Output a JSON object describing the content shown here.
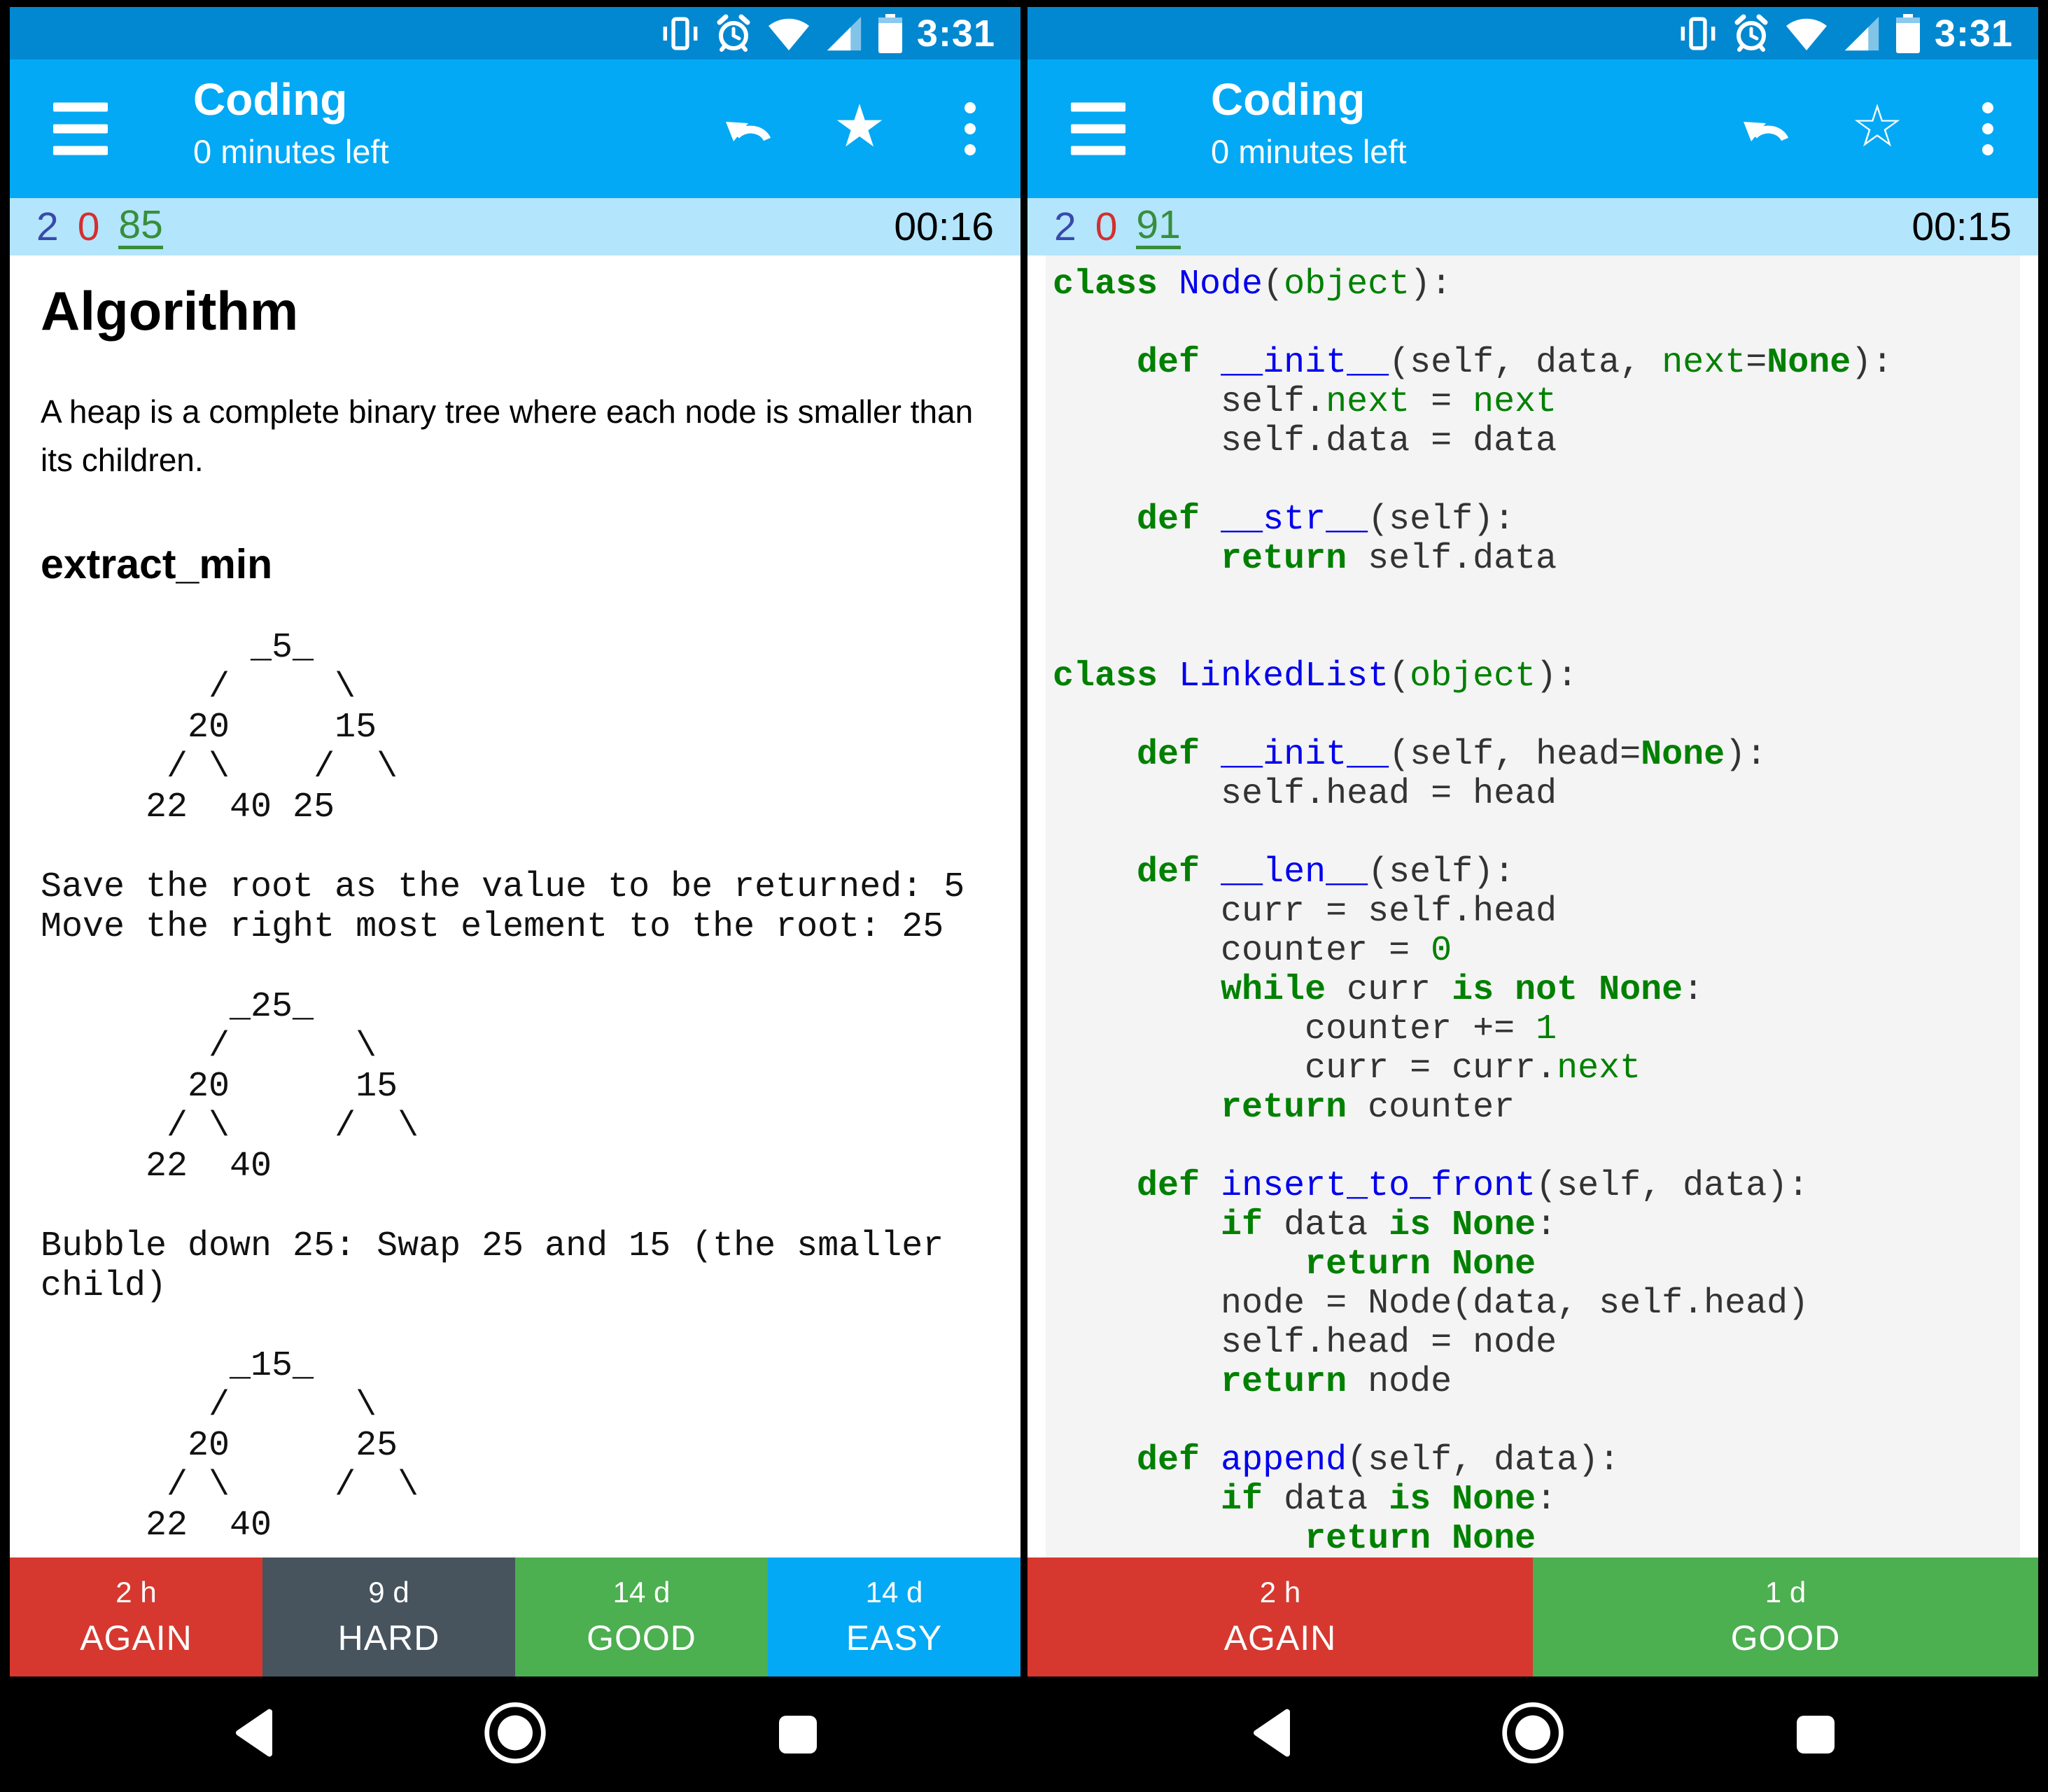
{
  "status_bar": {
    "time": "3:31",
    "icons": [
      "vibrate-icon",
      "alarm-icon",
      "wifi-icon",
      "cell-signal-icon",
      "battery-icon"
    ]
  },
  "nav_bar": {
    "icons": [
      "back-icon",
      "home-icon",
      "recents-icon"
    ]
  },
  "colors": {
    "status_bar_bg": "#0288d1",
    "toolbar_bg": "#03a9f4",
    "counter_bar_bg": "#b3e5fc",
    "new_count": "#3949ab",
    "learning_count": "#d32f2f",
    "due_count": "#388e3c",
    "code_bg": "#f4f4f4",
    "code_keyword": "#008000",
    "code_builtin": "#008000",
    "code_name": "#0000ee",
    "again_red": "#d6382f",
    "hard_gray": "#47545e",
    "good_green": "#4caf50",
    "easy_blue": "#03a9f4"
  },
  "panels": {
    "left": {
      "toolbar": {
        "title": "Coding",
        "subtitle": "0 minutes left",
        "star_glyph": "★"
      },
      "counts": {
        "new_count": "2",
        "learning_count": "0",
        "due_count": "85",
        "timer": "00:16"
      },
      "card": {
        "sections": [
          {
            "kind": "h1",
            "name": "card-heading-algorithm",
            "text": "Algorithm"
          },
          {
            "kind": "p",
            "name": "card-paragraph-heap",
            "text": "A heap is a complete binary tree where each node is smaller than its children."
          },
          {
            "kind": "h2",
            "name": "card-heading-extract-min",
            "text": "extract_min"
          },
          {
            "kind": "mono",
            "name": "ascii-tree-1",
            "lines": [
              "          _5_",
              "        /     \\",
              "       20     15",
              "      / \\    /  \\",
              "     22  40 25"
            ]
          },
          {
            "kind": "mono",
            "name": "steps-text",
            "lines": [
              "Save the root as the value to be returned: 5",
              "Move the right most element to the root: 25"
            ]
          },
          {
            "kind": "mono",
            "name": "ascii-tree-2",
            "lines": [
              "         _25_",
              "        /      \\",
              "       20      15",
              "      / \\     /  \\",
              "     22  40"
            ]
          },
          {
            "kind": "mono",
            "name": "bubble-down-text",
            "lines": [
              "Bubble down 25: Swap 25 and 15 (the smaller",
              "child)"
            ]
          },
          {
            "kind": "mono",
            "name": "ascii-tree-3",
            "lines": [
              "         _15_",
              "        /      \\",
              "       20      25",
              "      / \\     /  \\",
              "     22  40"
            ]
          }
        ]
      },
      "answers": [
        {
          "interval": "2 h",
          "label": "AGAIN",
          "color": "#d6382f"
        },
        {
          "interval": "9 d",
          "label": "HARD",
          "color": "#47545e"
        },
        {
          "interval": "14 d",
          "label": "GOOD",
          "color": "#4caf50"
        },
        {
          "interval": "14 d",
          "label": "EASY",
          "color": "#03a9f4"
        }
      ]
    },
    "right": {
      "toolbar": {
        "title": "Coding",
        "subtitle": "0 minutes left",
        "star_glyph": "☆"
      },
      "counts": {
        "new_count": "2",
        "learning_count": "0",
        "due_count": "91",
        "timer": "00:15"
      },
      "card": {
        "code_lines": [
          [
            [
              "k",
              "class"
            ],
            [
              "p",
              " "
            ],
            [
              "n",
              "Node"
            ],
            [
              "p",
              "("
            ],
            [
              "b",
              "object"
            ],
            [
              "p",
              "):"
            ]
          ],
          [],
          [
            [
              "p",
              "    "
            ],
            [
              "k",
              "def"
            ],
            [
              "p",
              " "
            ],
            [
              "n",
              "__init__"
            ],
            [
              "p",
              "(self, data, "
            ],
            [
              "b",
              "next"
            ],
            [
              "p",
              "="
            ],
            [
              "k",
              "None"
            ],
            [
              "p",
              "):"
            ]
          ],
          [
            [
              "p",
              "        self."
            ],
            [
              "b",
              "next"
            ],
            [
              "p",
              " = "
            ],
            [
              "b",
              "next"
            ]
          ],
          [
            [
              "p",
              "        self.data = data"
            ]
          ],
          [],
          [
            [
              "p",
              "    "
            ],
            [
              "k",
              "def"
            ],
            [
              "p",
              " "
            ],
            [
              "n",
              "__str__"
            ],
            [
              "p",
              "(self):"
            ]
          ],
          [
            [
              "p",
              "        "
            ],
            [
              "k",
              "return"
            ],
            [
              "p",
              " self.data"
            ]
          ],
          [],
          [],
          [
            [
              "k",
              "class"
            ],
            [
              "p",
              " "
            ],
            [
              "n",
              "LinkedList"
            ],
            [
              "p",
              "("
            ],
            [
              "b",
              "object"
            ],
            [
              "p",
              "):"
            ]
          ],
          [],
          [
            [
              "p",
              "    "
            ],
            [
              "k",
              "def"
            ],
            [
              "p",
              " "
            ],
            [
              "n",
              "__init__"
            ],
            [
              "p",
              "(self, head="
            ],
            [
              "k",
              "None"
            ],
            [
              "p",
              "):"
            ]
          ],
          [
            [
              "p",
              "        self.head = head"
            ]
          ],
          [],
          [
            [
              "p",
              "    "
            ],
            [
              "k",
              "def"
            ],
            [
              "p",
              " "
            ],
            [
              "n",
              "__len__"
            ],
            [
              "p",
              "(self):"
            ]
          ],
          [
            [
              "p",
              "        curr = self.head"
            ]
          ],
          [
            [
              "p",
              "        counter = "
            ],
            [
              "b",
              "0"
            ]
          ],
          [
            [
              "p",
              "        "
            ],
            [
              "k",
              "while"
            ],
            [
              "p",
              " curr "
            ],
            [
              "k",
              "is not None"
            ],
            [
              "p",
              ":"
            ]
          ],
          [
            [
              "p",
              "            counter += "
            ],
            [
              "b",
              "1"
            ]
          ],
          [
            [
              "p",
              "            curr = curr."
            ],
            [
              "b",
              "next"
            ]
          ],
          [
            [
              "p",
              "        "
            ],
            [
              "k",
              "return"
            ],
            [
              "p",
              " counter"
            ]
          ],
          [],
          [
            [
              "p",
              "    "
            ],
            [
              "k",
              "def"
            ],
            [
              "p",
              " "
            ],
            [
              "n",
              "insert_to_front"
            ],
            [
              "p",
              "(self, data):"
            ]
          ],
          [
            [
              "p",
              "        "
            ],
            [
              "k",
              "if"
            ],
            [
              "p",
              " data "
            ],
            [
              "k",
              "is None"
            ],
            [
              "p",
              ":"
            ]
          ],
          [
            [
              "p",
              "            "
            ],
            [
              "k",
              "return None"
            ]
          ],
          [
            [
              "p",
              "        node = Node(data, self.head)"
            ]
          ],
          [
            [
              "p",
              "        self.head = node"
            ]
          ],
          [
            [
              "p",
              "        "
            ],
            [
              "k",
              "return"
            ],
            [
              "p",
              " node"
            ]
          ],
          [],
          [
            [
              "p",
              "    "
            ],
            [
              "k",
              "def"
            ],
            [
              "p",
              " "
            ],
            [
              "n",
              "append"
            ],
            [
              "p",
              "(self, data):"
            ]
          ],
          [
            [
              "p",
              "        "
            ],
            [
              "k",
              "if"
            ],
            [
              "p",
              " data "
            ],
            [
              "k",
              "is None"
            ],
            [
              "p",
              ":"
            ]
          ],
          [
            [
              "p",
              "            "
            ],
            [
              "k",
              "return None"
            ]
          ]
        ]
      },
      "answers": [
        {
          "interval": "2 h",
          "label": "AGAIN",
          "color": "#d6382f"
        },
        {
          "interval": "1 d",
          "label": "GOOD",
          "color": "#4caf50"
        }
      ]
    }
  }
}
